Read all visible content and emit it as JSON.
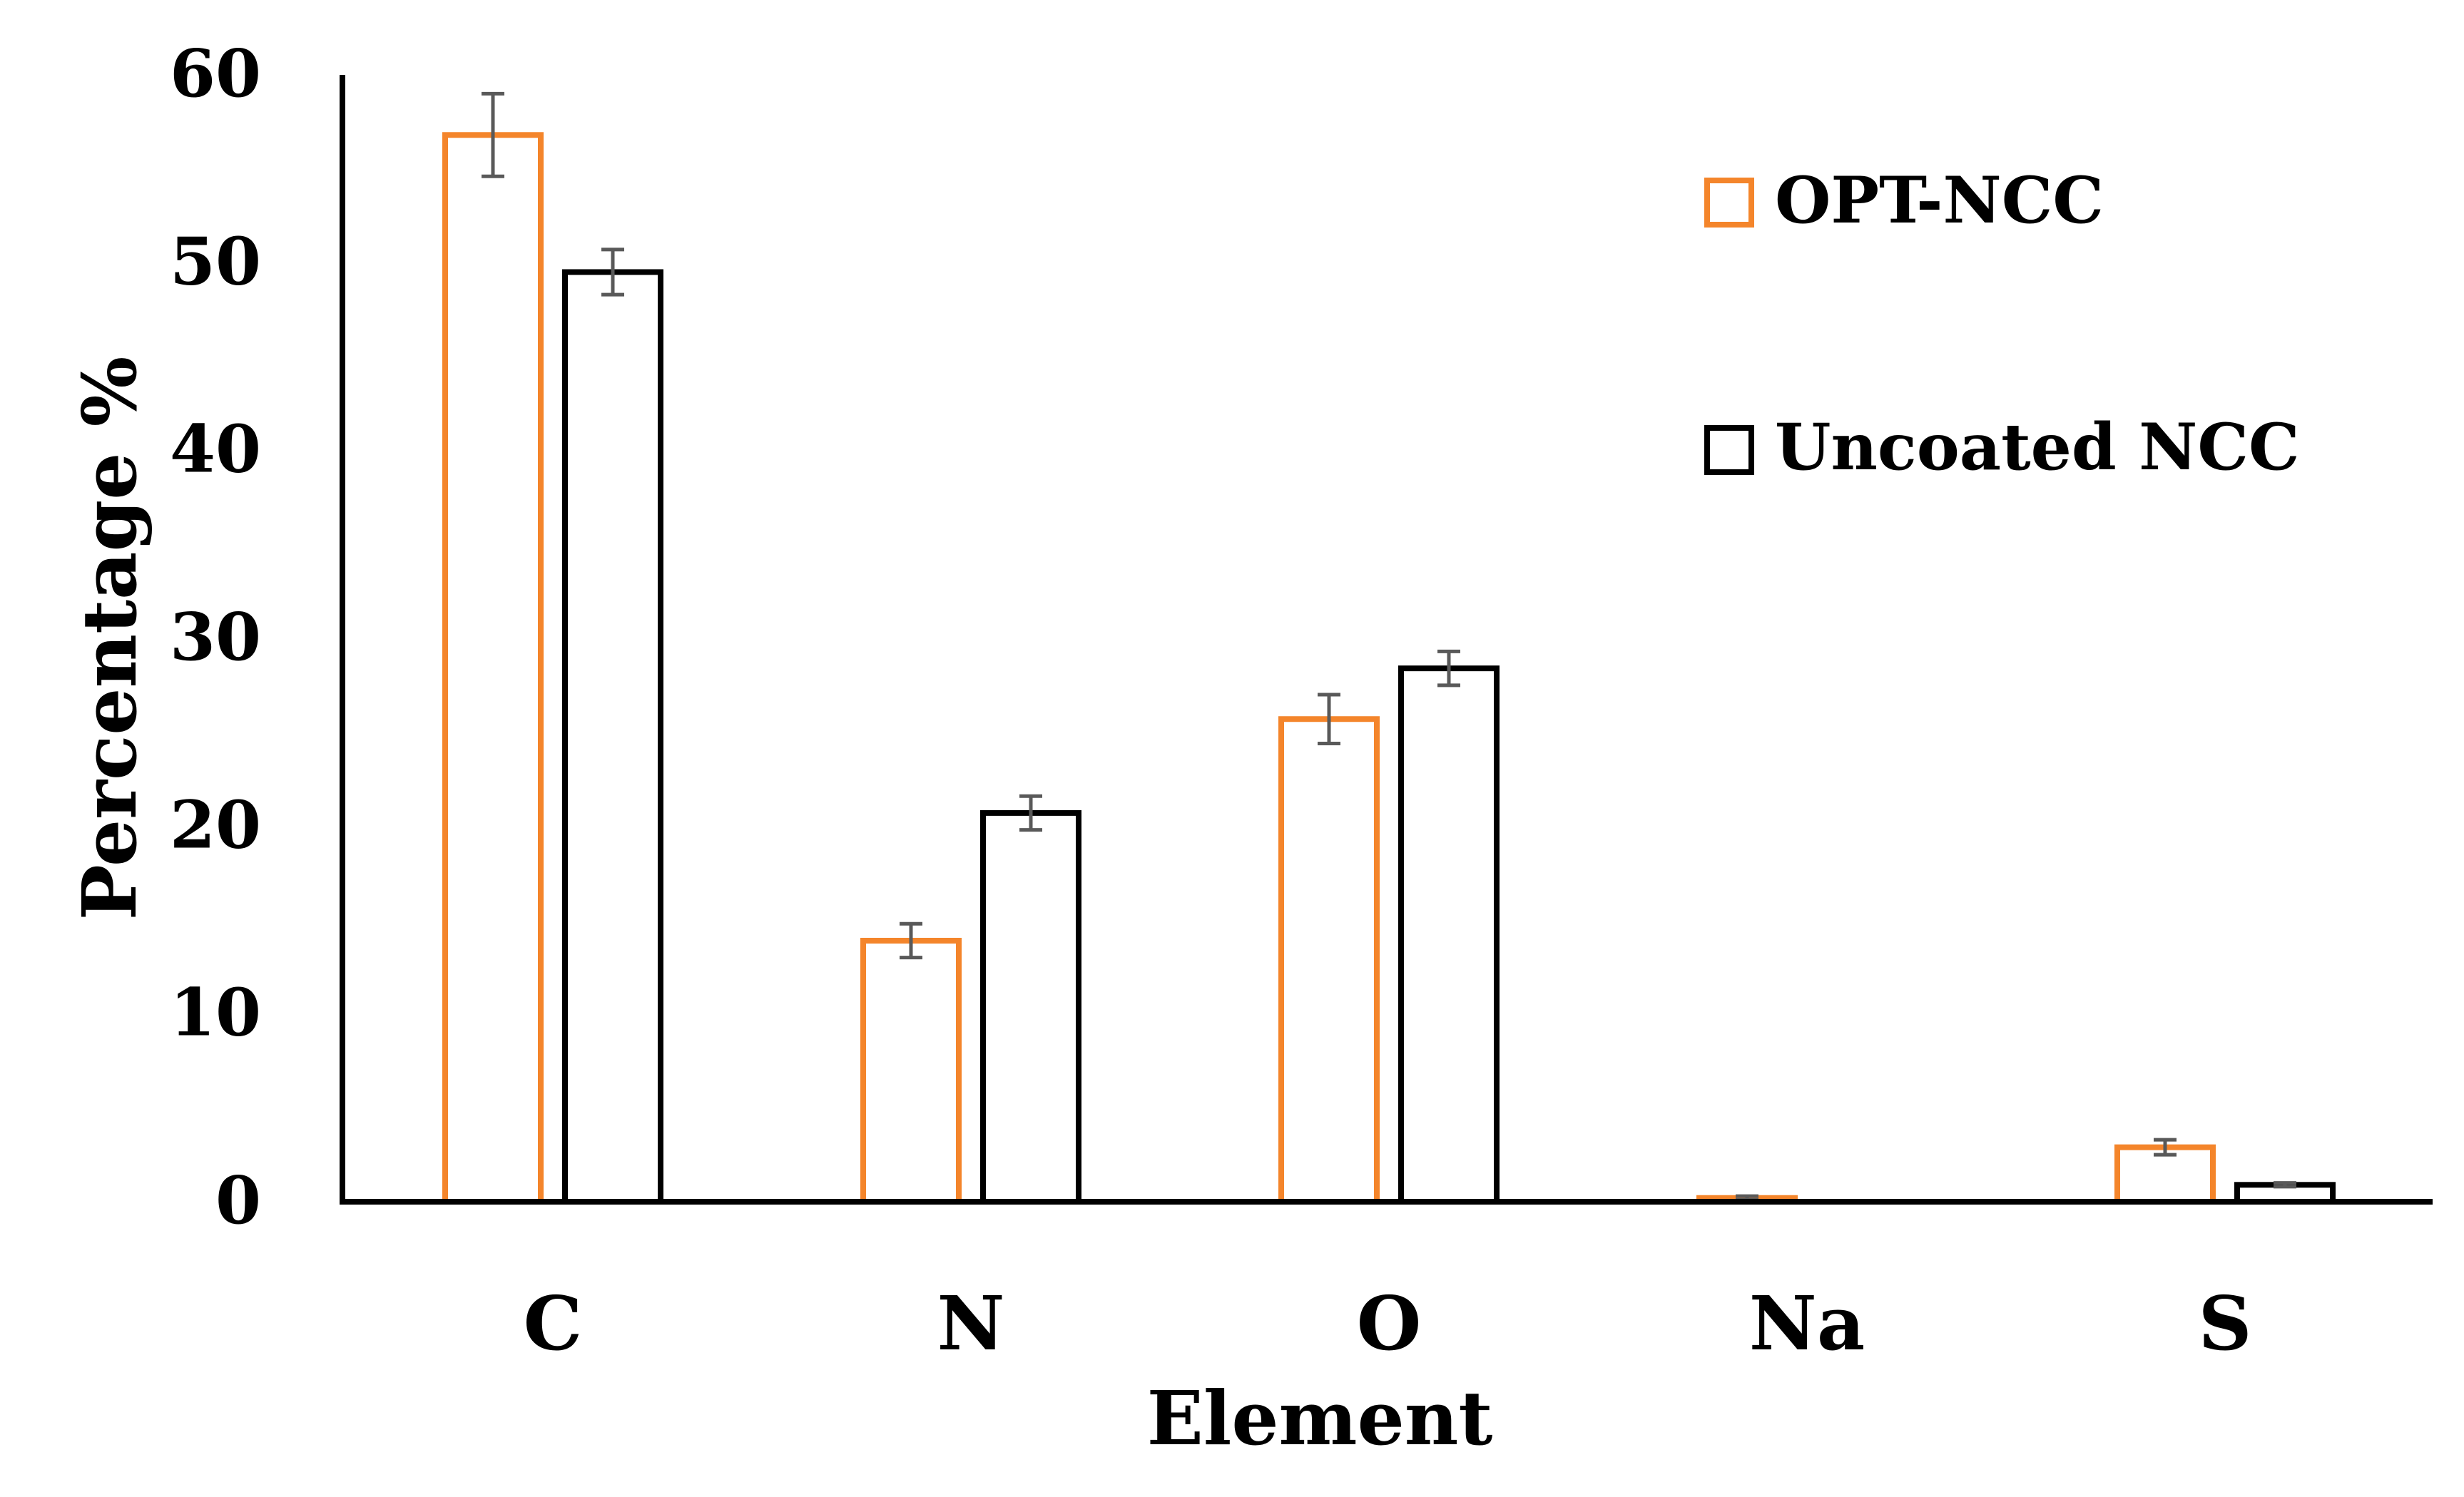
{
  "chart_data": {
    "type": "bar",
    "title": "",
    "xlabel": "Element",
    "ylabel": "Percentage %",
    "categories": [
      "C",
      "N",
      "O",
      "Na",
      "S"
    ],
    "ylim": [
      0,
      60
    ],
    "yticks": [
      "0",
      "10",
      "20",
      "30",
      "40",
      "50",
      "60"
    ],
    "grid": false,
    "legend_position": "top-right",
    "series": [
      {
        "name": "OPT-NCC",
        "color": "#F4852B",
        "values": [
          56.8,
          13.9,
          25.7,
          0.2,
          2.9
        ],
        "errors": [
          2.2,
          0.9,
          1.3,
          0.1,
          0.4
        ]
      },
      {
        "name": "Uncoated NCC",
        "color": "#000000",
        "values": [
          49.5,
          20.7,
          28.4,
          0,
          0.9
        ],
        "errors": [
          1.2,
          0.9,
          0.9,
          0,
          0.1
        ]
      }
    ]
  }
}
